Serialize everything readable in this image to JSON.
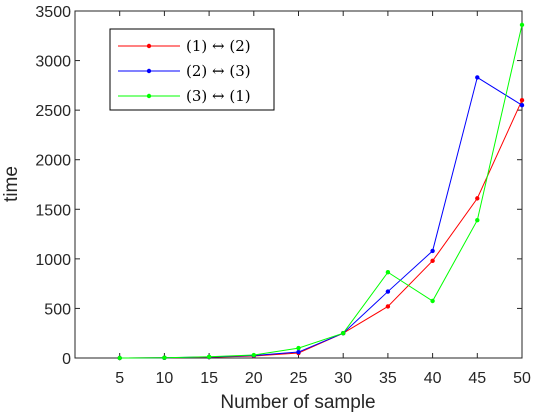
{
  "chart_data": {
    "type": "line",
    "title": "",
    "xlabel": "Number of sample",
    "ylabel": "time",
    "x": [
      5,
      10,
      15,
      20,
      25,
      30,
      35,
      40,
      45,
      50
    ],
    "xlim": [
      0,
      50
    ],
    "ylim": [
      0,
      3500
    ],
    "xticks": [
      5,
      10,
      15,
      20,
      25,
      30,
      35,
      40,
      45,
      50
    ],
    "yticks": [
      0,
      500,
      1000,
      1500,
      2000,
      2500,
      3000,
      3500
    ],
    "grid": false,
    "legend_position": "top-left",
    "series": [
      {
        "name": "(1) ↔ (2)",
        "color": "#ff0000",
        "values": [
          0,
          2,
          8,
          20,
          50,
          250,
          520,
          980,
          1610,
          2600
        ]
      },
      {
        "name": "(2) ↔ (3)",
        "color": "#0000ff",
        "values": [
          0,
          2,
          10,
          25,
          60,
          250,
          670,
          1080,
          2830,
          2550
        ]
      },
      {
        "name": "(3) ↔ (1)",
        "color": "#00ff00",
        "values": [
          0,
          3,
          12,
          30,
          100,
          250,
          865,
          575,
          1390,
          3360
        ]
      }
    ]
  }
}
